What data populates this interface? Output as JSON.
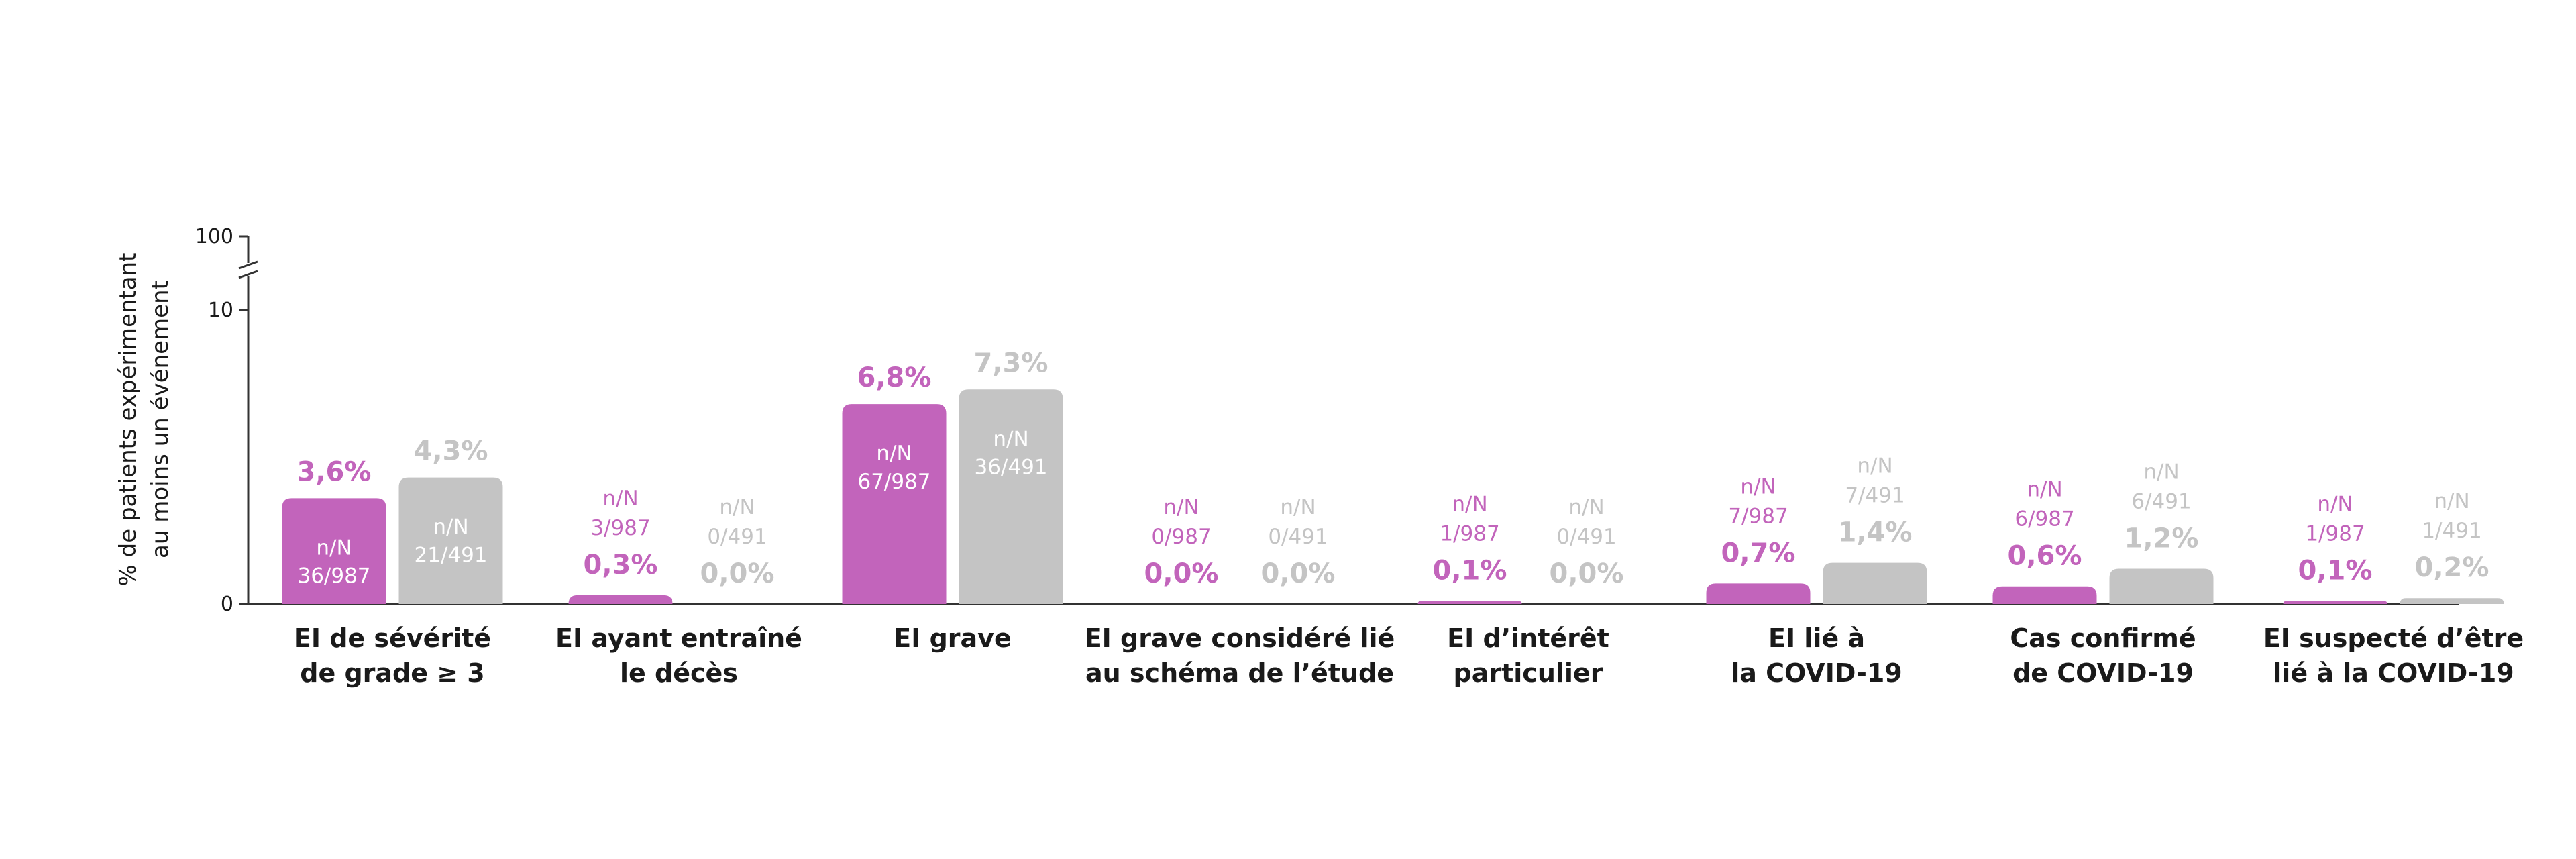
{
  "chart_data": {
    "type": "bar",
    "ylabel_lines": [
      "% de patients expérimentant",
      "au moins un événement"
    ],
    "yticks": [
      {
        "label": "0",
        "value": 0
      },
      {
        "label": "10",
        "value": 10
      },
      {
        "label": "100",
        "value": 100
      }
    ],
    "axis_break": true,
    "colors": {
      "series1": "#c264bb",
      "series2": "#c4c4c4",
      "axis": "#333333"
    },
    "categories": [
      {
        "lines": [
          "EI de sévérité",
          "de grade ≥ 3"
        ]
      },
      {
        "lines": [
          "EI ayant entraîné",
          "le décès"
        ]
      },
      {
        "lines": [
          "EI grave"
        ]
      },
      {
        "lines": [
          "EI grave considéré lié",
          "au schéma de l’étude"
        ]
      },
      {
        "lines": [
          "EI d’intérêt",
          "particulier"
        ]
      },
      {
        "lines": [
          "EI lié à",
          "la COVID-19"
        ]
      },
      {
        "lines": [
          "Cas confirmé",
          "de COVID-19"
        ]
      },
      {
        "lines": [
          "EI suspecté d’être",
          "lié à la COVID-19"
        ]
      }
    ],
    "series": [
      {
        "values": [
          3.6,
          0.3,
          6.8,
          0.0,
          0.1,
          0.7,
          0.6,
          0.1
        ],
        "labels": [
          "3,6%",
          "0,3%",
          "6,8%",
          "0,0%",
          "0,1%",
          "0,7%",
          "0,6%",
          "0,1%"
        ],
        "nn_header": "n/N",
        "nn": [
          "36/987",
          "3/987",
          "67/987",
          "0/987",
          "1/987",
          "7/987",
          "6/987",
          "1/987"
        ]
      },
      {
        "values": [
          4.3,
          0.0,
          7.3,
          0.0,
          0.0,
          1.4,
          1.2,
          0.2
        ],
        "labels": [
          "4,3%",
          "0,0%",
          "7,3%",
          "0,0%",
          "0,0%",
          "1,4%",
          "1,2%",
          "0,2%"
        ],
        "nn_header": "n/N",
        "nn": [
          "21/491",
          "0/491",
          "36/491",
          "0/491",
          "0/491",
          "7/491",
          "6/491",
          "1/491"
        ]
      }
    ]
  }
}
